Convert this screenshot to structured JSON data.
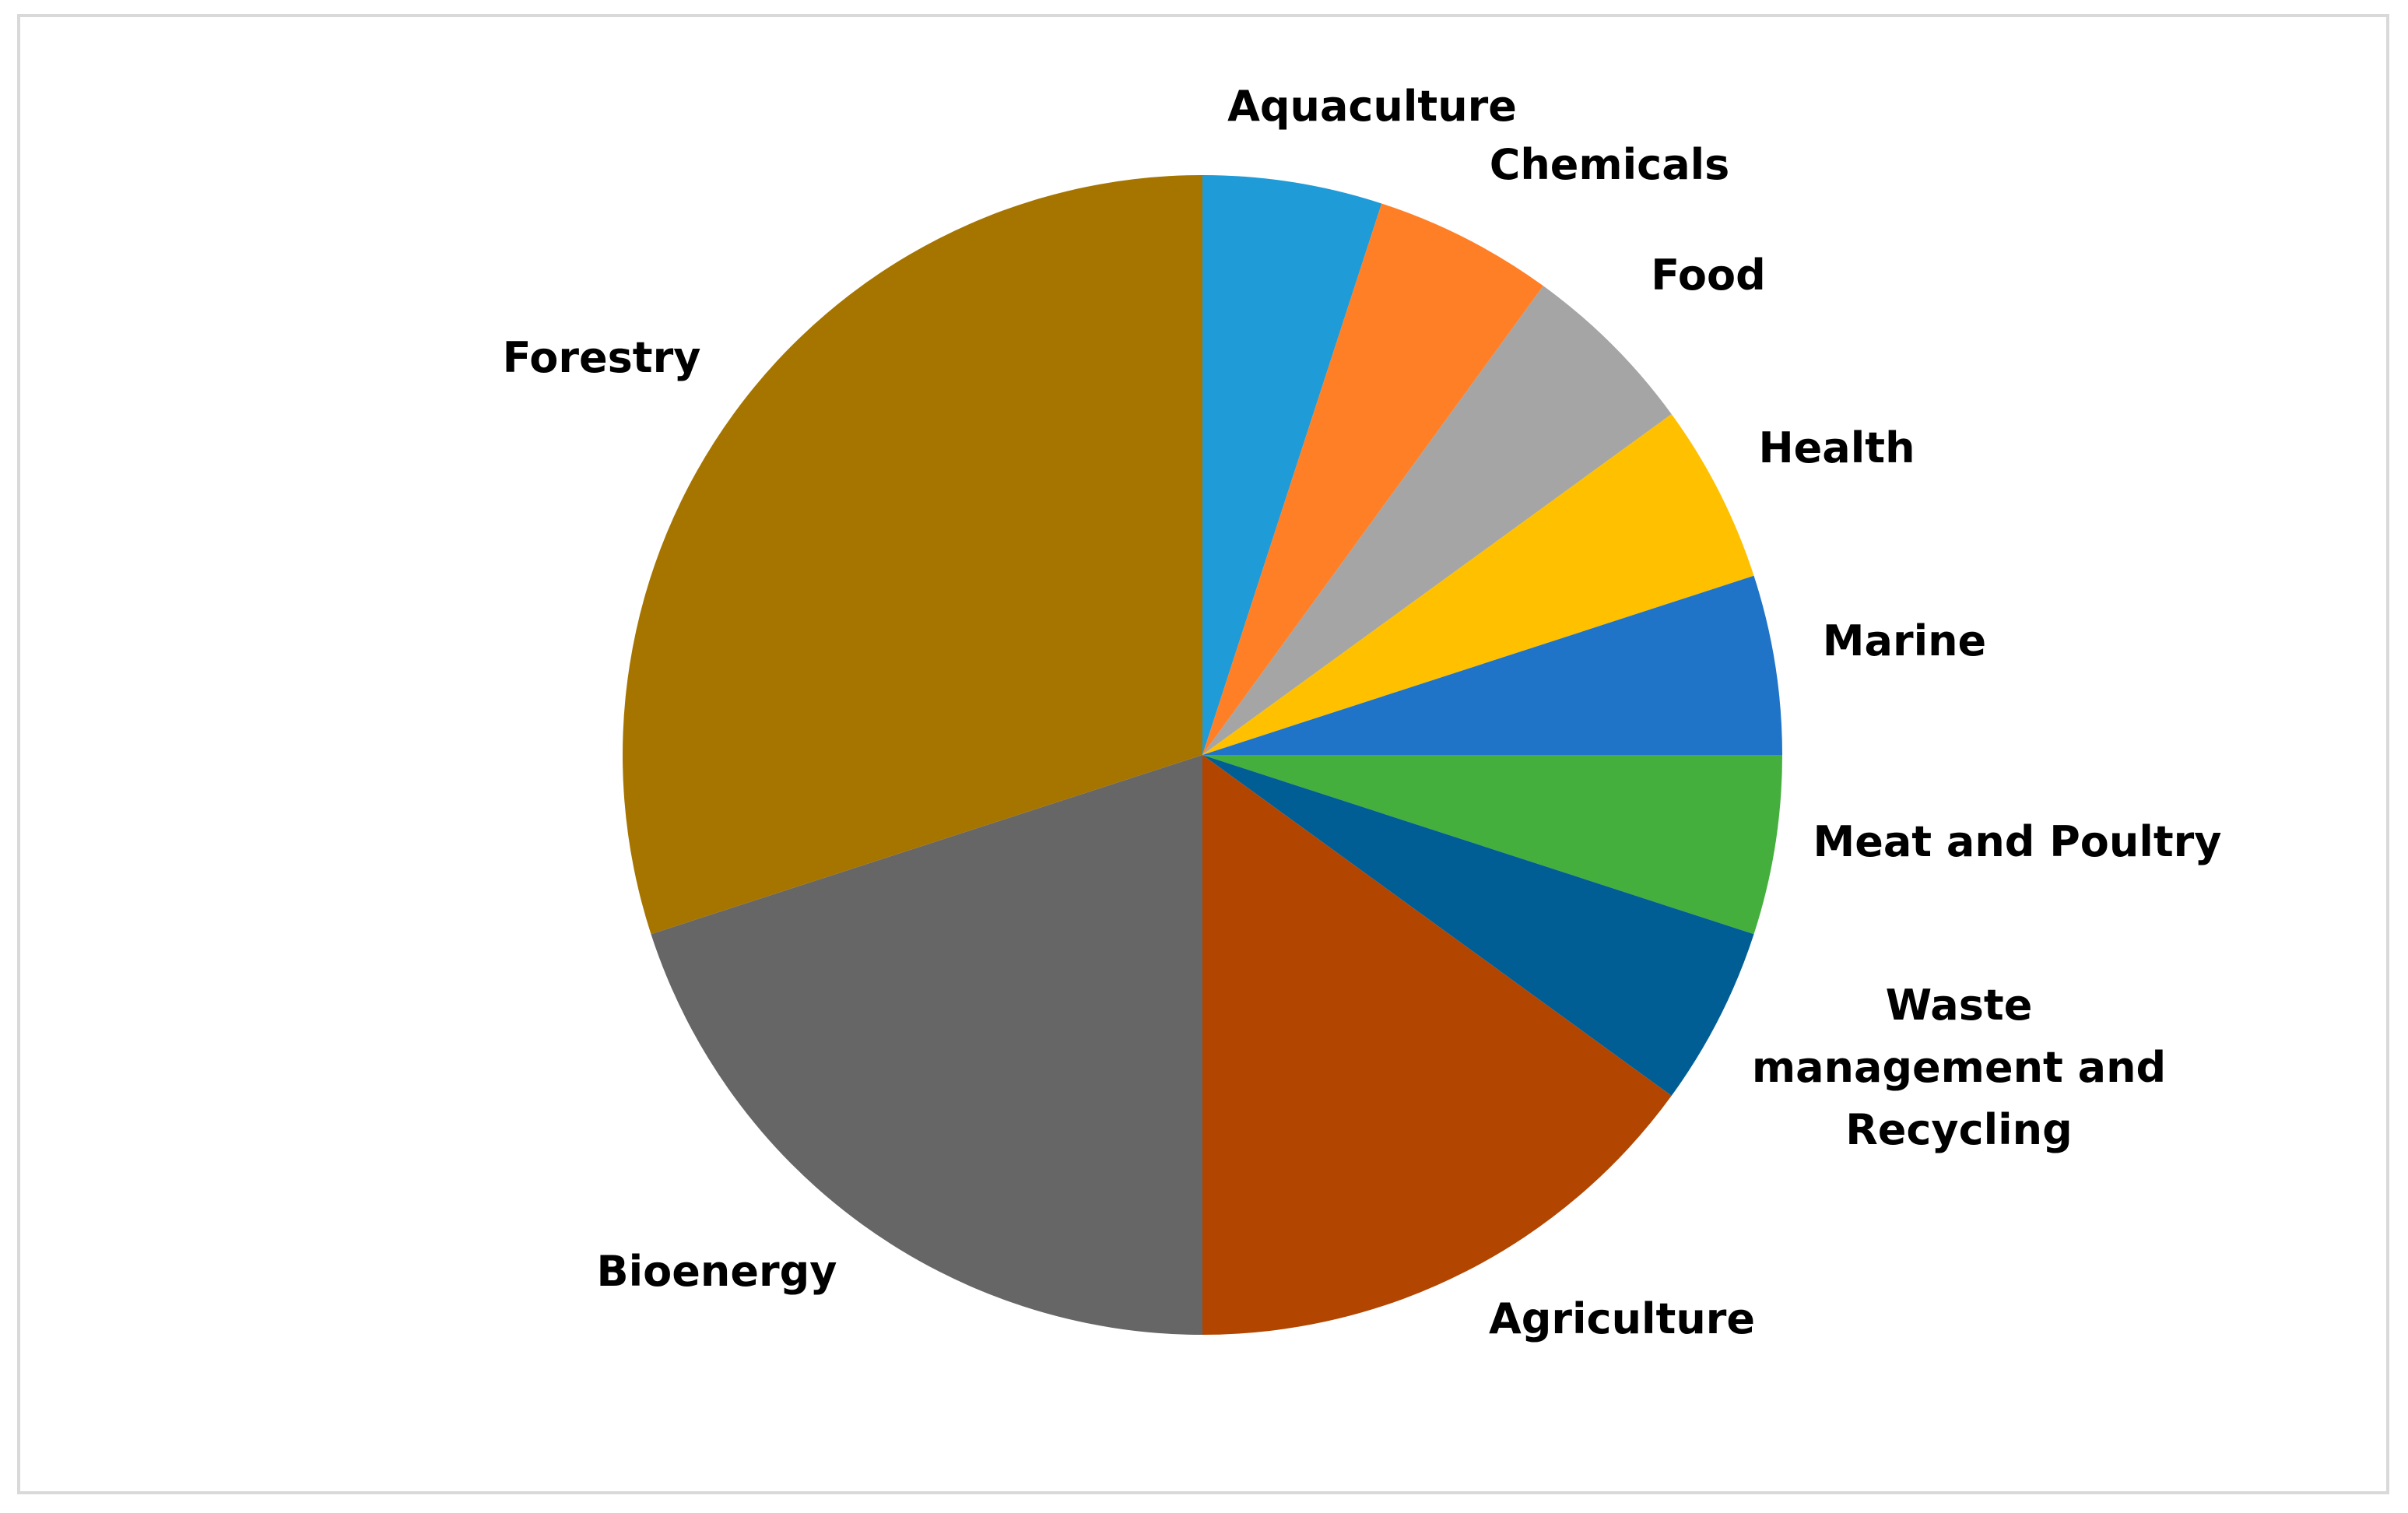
{
  "chart_data": {
    "type": "pie",
    "title": "",
    "start_angle_deg": 0,
    "direction": "clockwise",
    "slices": [
      {
        "label": "Aquaculture",
        "value": 5,
        "color": "#1F9BD7"
      },
      {
        "label": "Chemicals",
        "value": 5,
        "color": "#FF7F27"
      },
      {
        "label": "Food",
        "value": 5,
        "color": "#A5A5A5"
      },
      {
        "label": "Health",
        "value": 5,
        "color": "#FFC000"
      },
      {
        "label": "Marine",
        "value": 5,
        "color": "#1F74C8"
      },
      {
        "label": "Meat and Poultry",
        "value": 5,
        "color": "#44AF3C"
      },
      {
        "label": "Waste management and Recycling",
        "value": 5,
        "color": "#015E94"
      },
      {
        "label": "Agriculture",
        "value": 15,
        "color": "#B24500"
      },
      {
        "label": "Bioenergy",
        "value": 20,
        "color": "#666666"
      },
      {
        "label": "Forestry",
        "value": 30,
        "color": "#A67500"
      }
    ]
  }
}
